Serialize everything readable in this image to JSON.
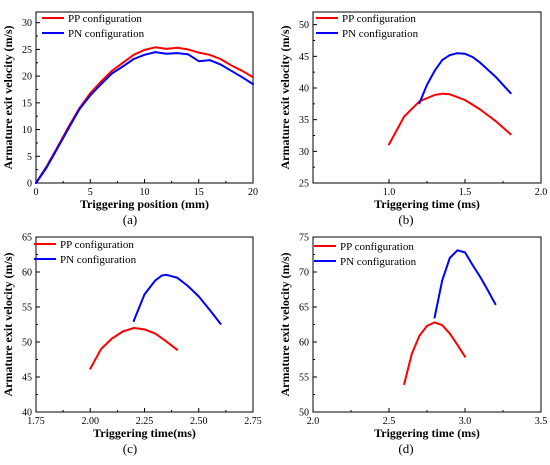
{
  "colors": {
    "pp": "#ff0000",
    "pn": "#0000ff",
    "axis": "#000000"
  },
  "chart_data": [
    {
      "panel_label": "(a)",
      "type": "line",
      "xlabel": "Triggering position (mm)",
      "ylabel": "Armature exit velocity (m/s)",
      "xlim": [
        0,
        20
      ],
      "ylim": [
        0,
        32
      ],
      "xticks": [
        "0",
        "5",
        "10",
        "15",
        "20"
      ],
      "yticks": [
        "0",
        "5",
        "10",
        "15",
        "20",
        "25",
        "30"
      ],
      "legend_position": "top-left",
      "series": [
        {
          "name": "PP configuration",
          "color": "#ff0000",
          "x": [
            0,
            1,
            2,
            3,
            4,
            5,
            6,
            7,
            8,
            9,
            10,
            11,
            12,
            13,
            14,
            15,
            16,
            17,
            18,
            19,
            20
          ],
          "y": [
            0,
            3.2,
            6.8,
            10.5,
            14.0,
            16.8,
            19.0,
            21.0,
            22.5,
            24.0,
            24.9,
            25.4,
            25.1,
            25.3,
            25.0,
            24.4,
            24.0,
            23.2,
            22.0,
            21.0,
            19.8
          ]
        },
        {
          "name": "PN configuration",
          "color": "#0000ff",
          "x": [
            0,
            1,
            2,
            3,
            4,
            5,
            6,
            7,
            8,
            9,
            10,
            11,
            12,
            13,
            14,
            15,
            16,
            17,
            18,
            19,
            20
          ],
          "y": [
            0,
            3.0,
            6.6,
            10.2,
            13.8,
            16.4,
            18.5,
            20.5,
            21.8,
            23.2,
            24.0,
            24.5,
            24.2,
            24.3,
            24.1,
            22.8,
            23.0,
            22.2,
            21.0,
            19.8,
            18.5
          ]
        }
      ]
    },
    {
      "panel_label": "(b)",
      "type": "line",
      "xlabel": "Triggering time (ms)",
      "ylabel": "Armature exit velocity (m/s)",
      "xlim": [
        0.5,
        2.0
      ],
      "ylim": [
        25,
        52
      ],
      "xticks": [
        "1.0",
        "1.5",
        "2.0"
      ],
      "yticks": [
        "25",
        "30",
        "35",
        "40",
        "45",
        "50"
      ],
      "legend_position": "top-left",
      "series": [
        {
          "name": "PP configuration",
          "color": "#ff0000",
          "x": [
            1.0,
            1.1,
            1.2,
            1.3,
            1.35,
            1.4,
            1.5,
            1.6,
            1.7,
            1.8
          ],
          "y": [
            31.1,
            35.5,
            37.9,
            38.9,
            39.1,
            39.0,
            38.1,
            36.6,
            34.8,
            32.7
          ]
        },
        {
          "name": "PN configuration",
          "color": "#0000ff",
          "x": [
            1.2,
            1.25,
            1.3,
            1.35,
            1.4,
            1.45,
            1.5,
            1.55,
            1.6,
            1.7,
            1.8
          ],
          "y": [
            37.6,
            40.5,
            42.7,
            44.4,
            45.2,
            45.5,
            45.4,
            44.9,
            44.0,
            41.8,
            39.2
          ]
        }
      ]
    },
    {
      "panel_label": "(c)",
      "type": "line",
      "xlabel": "Triggering time(ms)",
      "ylabel": "Armature exit velocity (m/s)",
      "xlim": [
        1.75,
        2.75
      ],
      "ylim": [
        40,
        65
      ],
      "xticks": [
        "1.75",
        "2.00",
        "2.25",
        "2.50",
        "2.75"
      ],
      "yticks": [
        "40",
        "45",
        "50",
        "55",
        "60",
        "65"
      ],
      "legend_position": "top-left",
      "series": [
        {
          "name": "PP configuration",
          "color": "#ff0000",
          "x": [
            2.0,
            2.05,
            2.1,
            2.15,
            2.2,
            2.25,
            2.3,
            2.35,
            2.4
          ],
          "y": [
            46.2,
            49.0,
            50.5,
            51.5,
            52.0,
            51.8,
            51.2,
            50.1,
            48.9
          ]
        },
        {
          "name": "PN configuration",
          "color": "#0000ff",
          "x": [
            2.2,
            2.25,
            2.3,
            2.33,
            2.35,
            2.4,
            2.45,
            2.5,
            2.55,
            2.6
          ],
          "y": [
            53.0,
            56.8,
            58.8,
            59.5,
            59.6,
            59.2,
            58.0,
            56.5,
            54.6,
            52.6
          ]
        }
      ]
    },
    {
      "panel_label": "(d)",
      "type": "line",
      "xlabel": "Triggering time (ms)",
      "ylabel": "Armature exit velocity (m/s)",
      "xlim": [
        2.0,
        3.5
      ],
      "ylim": [
        50,
        75
      ],
      "xticks": [
        "2.0",
        "2.5",
        "3.0",
        "3.5"
      ],
      "yticks": [
        "50",
        "55",
        "60",
        "65",
        "70",
        "75"
      ],
      "legend_position": "top-left",
      "series": [
        {
          "name": "PP configuration",
          "color": "#ff0000",
          "x": [
            2.6,
            2.65,
            2.7,
            2.75,
            2.8,
            2.85,
            2.9,
            2.95,
            3.0
          ],
          "y": [
            54.0,
            58.3,
            60.9,
            62.3,
            62.8,
            62.4,
            61.2,
            59.6,
            57.9
          ]
        },
        {
          "name": "PN configuration",
          "color": "#0000ff",
          "x": [
            2.8,
            2.85,
            2.9,
            2.95,
            3.0,
            3.05,
            3.1,
            3.15,
            3.2
          ],
          "y": [
            63.5,
            68.8,
            72.0,
            73.1,
            72.8,
            71.0,
            69.3,
            67.4,
            65.4
          ]
        }
      ]
    }
  ]
}
